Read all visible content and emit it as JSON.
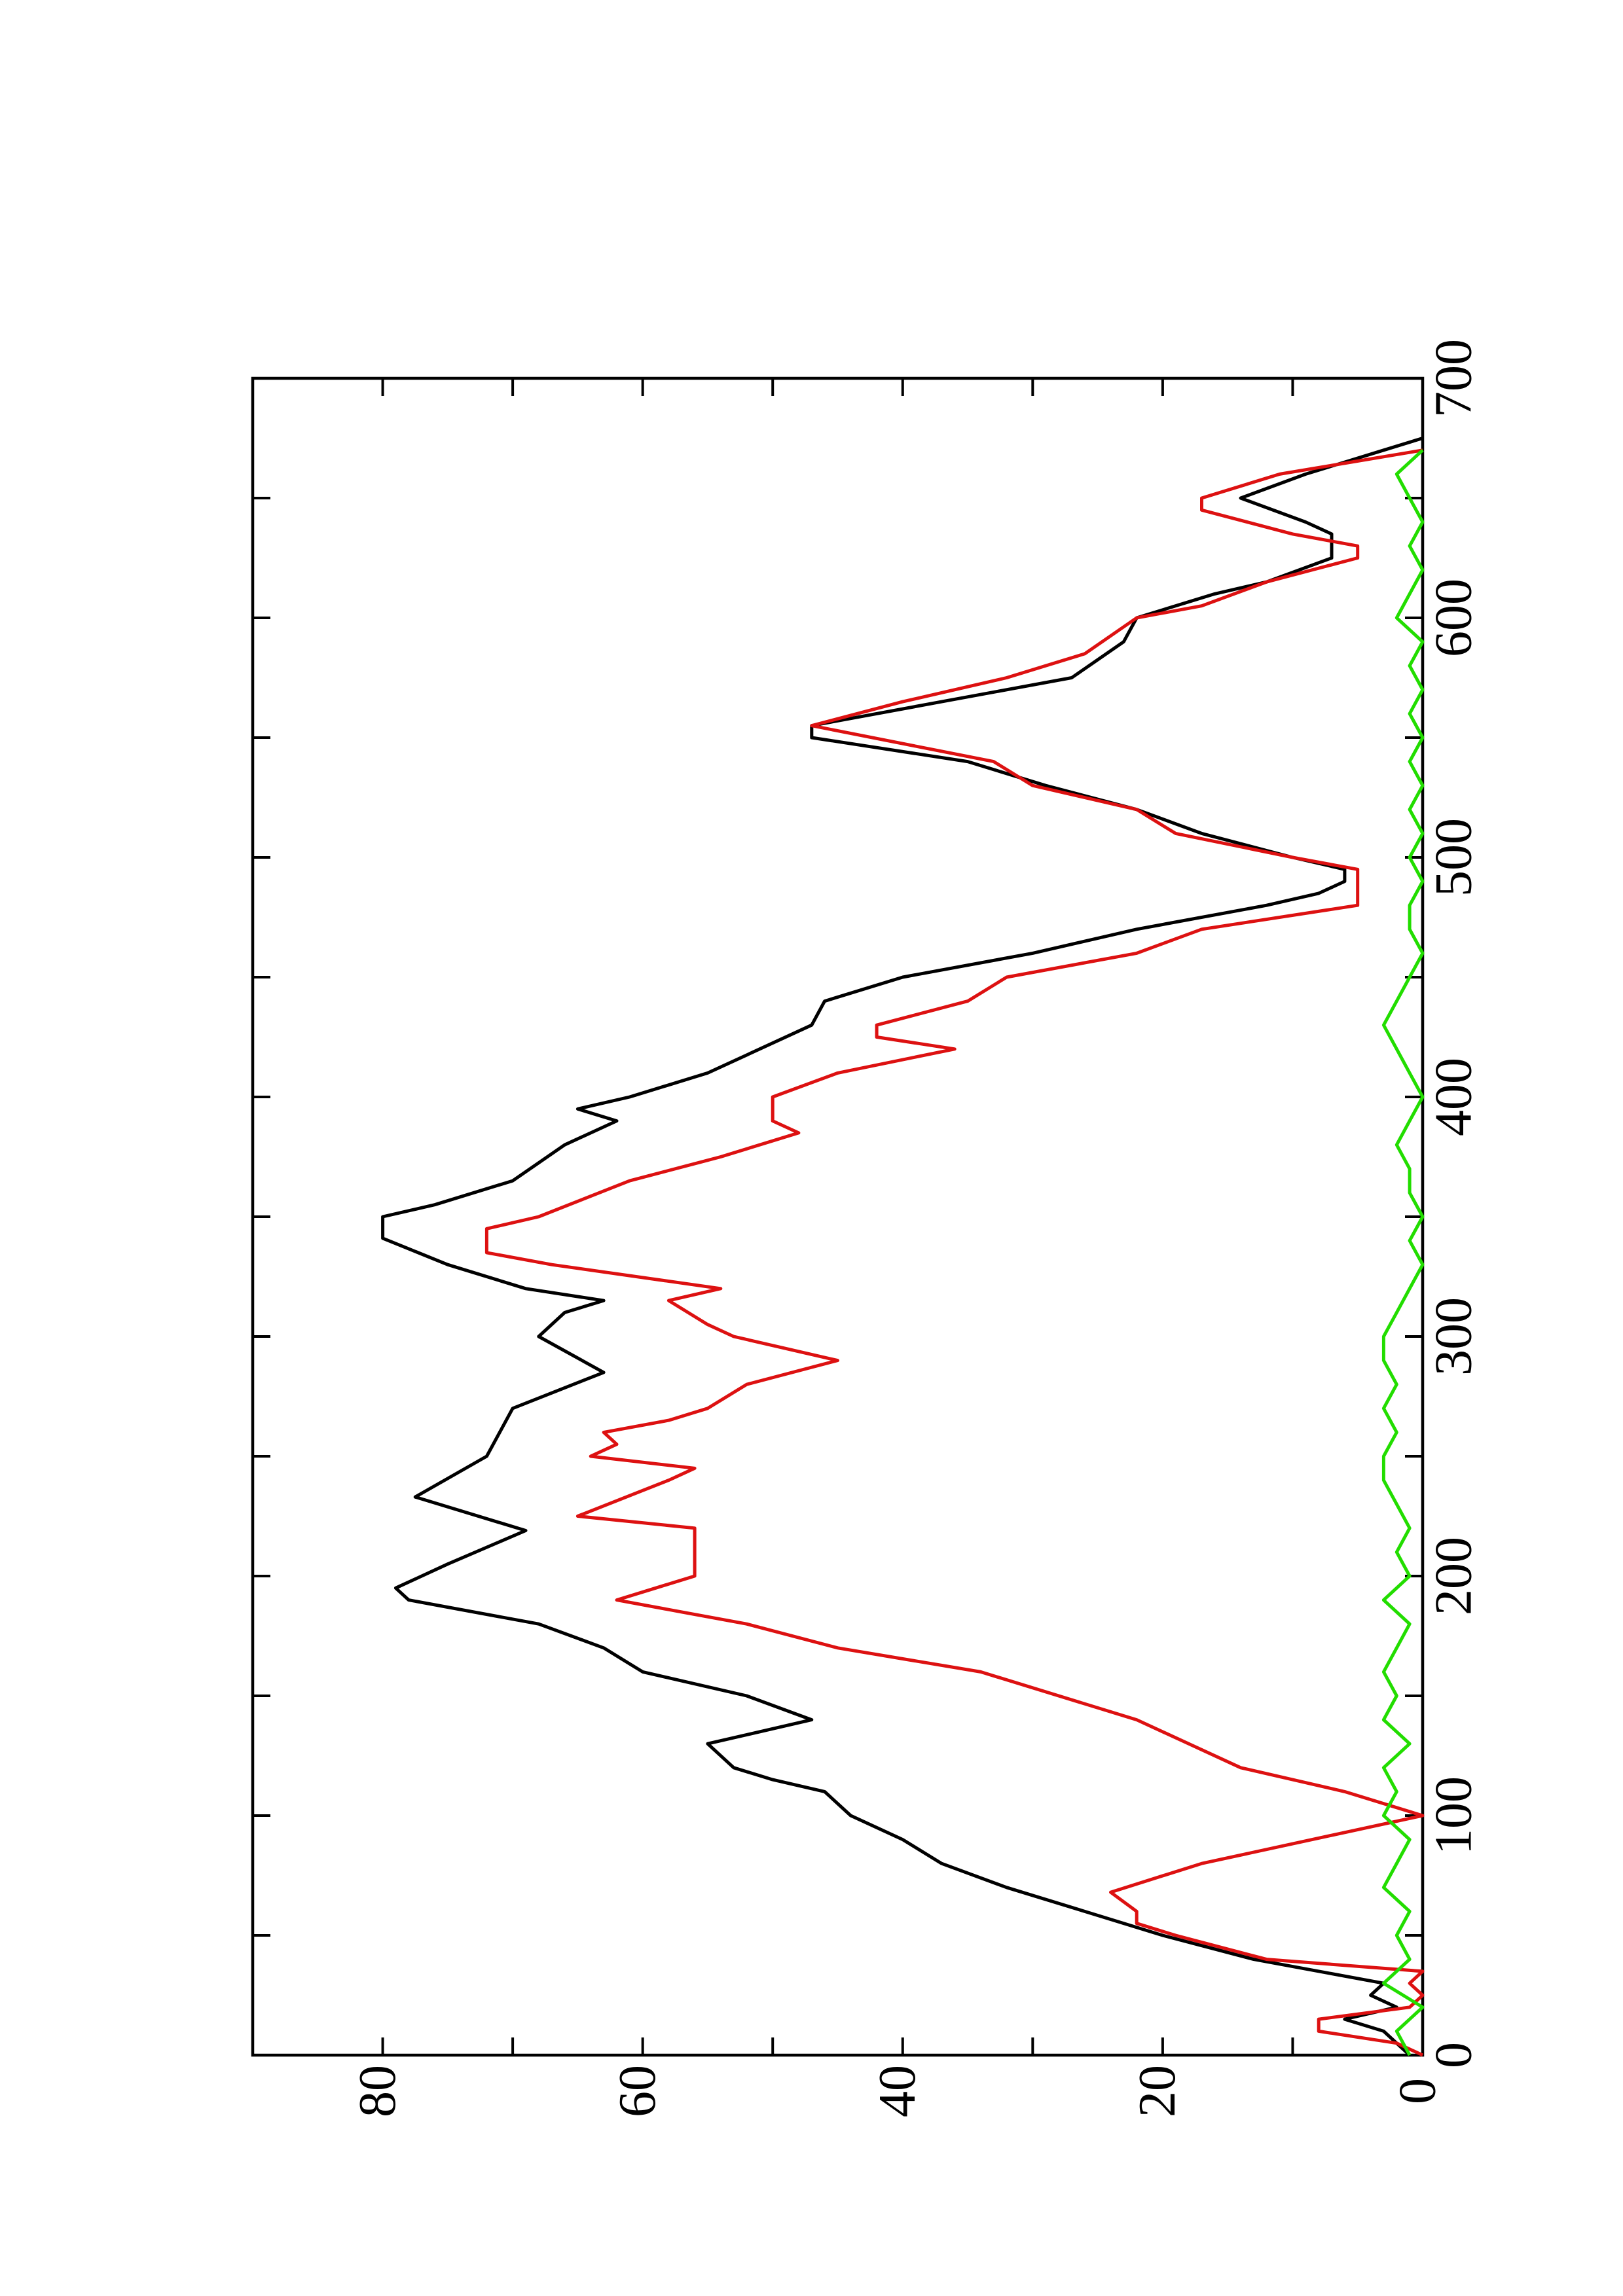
{
  "chart_data": {
    "type": "line",
    "xlim": [
      0,
      700
    ],
    "xticks": [
      0,
      100,
      200,
      300,
      400,
      500,
      600,
      700
    ],
    "xminorticks": [
      50,
      150,
      250,
      350,
      450,
      550,
      650
    ],
    "ylim": [
      0,
      90
    ],
    "yticks": [
      0,
      20,
      40,
      60,
      80
    ],
    "yminorticks": [
      10,
      30,
      50,
      70
    ],
    "rotated": true,
    "series": [
      {
        "color": "#000000",
        "x": [
          0,
          10,
          15,
          20,
          25,
          30,
          40,
          50,
          60,
          70,
          80,
          90,
          100,
          110,
          115,
          120,
          130,
          140,
          150,
          160,
          170,
          180,
          190,
          195,
          205,
          219,
          233,
          250,
          270,
          285,
          300,
          310,
          315,
          320,
          330,
          341,
          350,
          355,
          365,
          380,
          390,
          395,
          400,
          410,
          430,
          440,
          450,
          460,
          470,
          480,
          485,
          490,
          495,
          500,
          510,
          520,
          530,
          540,
          550,
          555,
          565,
          575,
          590,
          600,
          610,
          615,
          625,
          635,
          640,
          650,
          660,
          670,
          675
        ],
        "values": [
          1,
          3,
          6,
          2,
          4,
          3,
          13,
          20,
          26,
          32,
          37,
          40,
          44,
          46,
          50,
          53,
          55,
          47,
          52,
          60,
          63,
          68,
          78,
          79,
          75,
          69,
          77.5,
          72,
          70,
          63,
          68,
          66,
          63,
          69,
          75,
          80,
          80,
          76,
          70,
          66,
          62,
          65,
          61,
          55,
          47,
          46,
          40,
          30,
          22,
          12,
          8,
          6,
          6,
          10,
          17,
          22,
          29,
          35,
          47,
          47,
          37,
          27,
          23,
          22,
          16,
          12,
          7,
          7,
          9,
          14,
          9,
          3,
          0
        ]
      },
      {
        "color": "#dd1111",
        "x": [
          0,
          5,
          10,
          15,
          20,
          25,
          30,
          35,
          40,
          50,
          55,
          60,
          68,
          80,
          100,
          110,
          120,
          140,
          160,
          170,
          180,
          185,
          190,
          195,
          200,
          220,
          225,
          240,
          245,
          250,
          255,
          260,
          265,
          270,
          280,
          290,
          300,
          305,
          315,
          320,
          330,
          335,
          345,
          350,
          365,
          375,
          385,
          390,
          400,
          410,
          420,
          425,
          430,
          440,
          450,
          460,
          470,
          480,
          495,
          500,
          510,
          520,
          530,
          540,
          555,
          565,
          575,
          585,
          600,
          605,
          615,
          625,
          630,
          635,
          645,
          650,
          660,
          670
        ],
        "values": [
          0,
          2,
          8,
          8,
          1,
          0,
          1,
          0,
          12,
          19,
          22,
          22,
          24,
          17,
          0,
          6,
          14,
          22,
          34,
          45,
          52,
          57,
          62,
          59,
          56,
          56,
          65,
          58,
          56,
          64,
          62,
          63,
          58,
          55,
          52,
          45,
          53,
          55,
          58,
          54,
          67,
          72,
          72,
          68,
          61,
          54,
          48,
          50,
          50,
          45,
          36,
          42,
          42,
          35,
          32,
          22,
          17,
          5,
          5,
          10,
          19,
          22,
          30,
          33,
          47,
          40,
          32,
          26,
          22,
          17,
          12,
          5,
          5,
          10,
          17,
          17,
          11,
          0
        ]
      },
      {
        "color": "#22dd00",
        "x": [
          0,
          10,
          20,
          30,
          40,
          50,
          60,
          70,
          80,
          90,
          100,
          110,
          120,
          130,
          140,
          150,
          160,
          170,
          180,
          190,
          200,
          210,
          220,
          230,
          240,
          250,
          260,
          270,
          280,
          290,
          300,
          310,
          320,
          330,
          340,
          350,
          360,
          370,
          380,
          390,
          400,
          410,
          420,
          430,
          440,
          450,
          460,
          470,
          480,
          490,
          500,
          510,
          520,
          530,
          540,
          550,
          560,
          570,
          580,
          590,
          600,
          610,
          620,
          630,
          640,
          650,
          660,
          670
        ],
        "values": [
          1,
          2,
          0,
          3,
          1,
          2,
          1,
          3,
          2,
          1,
          3,
          2,
          3,
          1,
          3,
          2,
          3,
          2,
          1,
          3,
          1,
          2,
          1,
          2,
          3,
          3,
          2,
          3,
          2,
          3,
          3,
          2,
          1,
          0,
          1,
          0,
          1,
          1,
          2,
          1,
          0,
          1,
          2,
          3,
          2,
          1,
          0,
          1,
          1,
          0,
          1,
          0,
          1,
          0,
          1,
          0,
          1,
          0,
          1,
          0,
          2,
          1,
          0,
          1,
          0,
          1,
          2,
          0
        ]
      }
    ]
  }
}
